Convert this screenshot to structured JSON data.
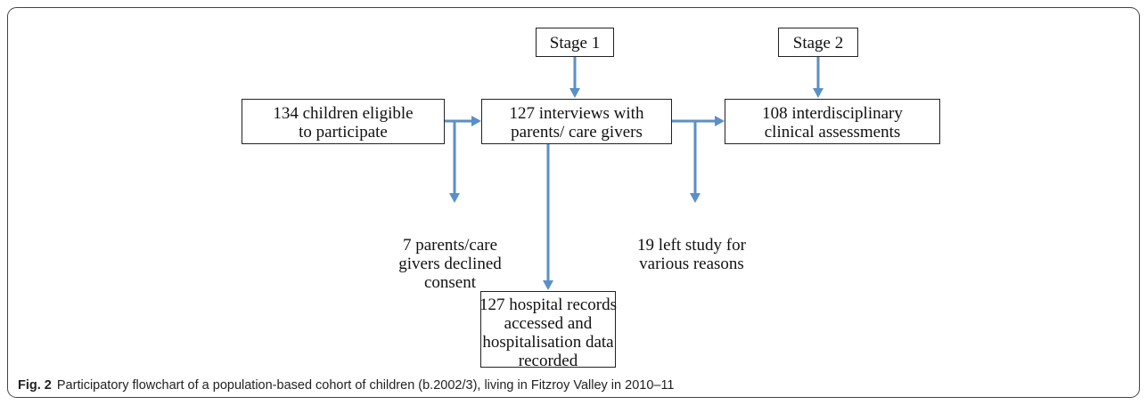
{
  "nodes": [
    {
      "lines": [
        "Stage 1"
      ]
    },
    {
      "lines": [
        "Stage 2"
      ]
    },
    {
      "lines": [
        "134 children eligible",
        "to participate"
      ]
    },
    {
      "lines": [
        "127 interviews with",
        "parents/ care givers"
      ]
    },
    {
      "lines": [
        "108 interdisciplinary",
        "clinical assessments"
      ]
    },
    {
      "lines": [
        "127 hospital records",
        "accessed and",
        "hospitalisation data",
        "recorded"
      ]
    }
  ],
  "notes": [
    {
      "lines": [
        "7 parents/care",
        "givers declined",
        "consent"
      ]
    },
    {
      "lines": [
        "19 left study for",
        "various reasons"
      ]
    }
  ],
  "caption": {
    "label": "Fig. 2",
    "text": "Participatory flowchart of a population-based cohort of children (b.2002/3), living in Fitzroy Valley in 2010–11"
  }
}
